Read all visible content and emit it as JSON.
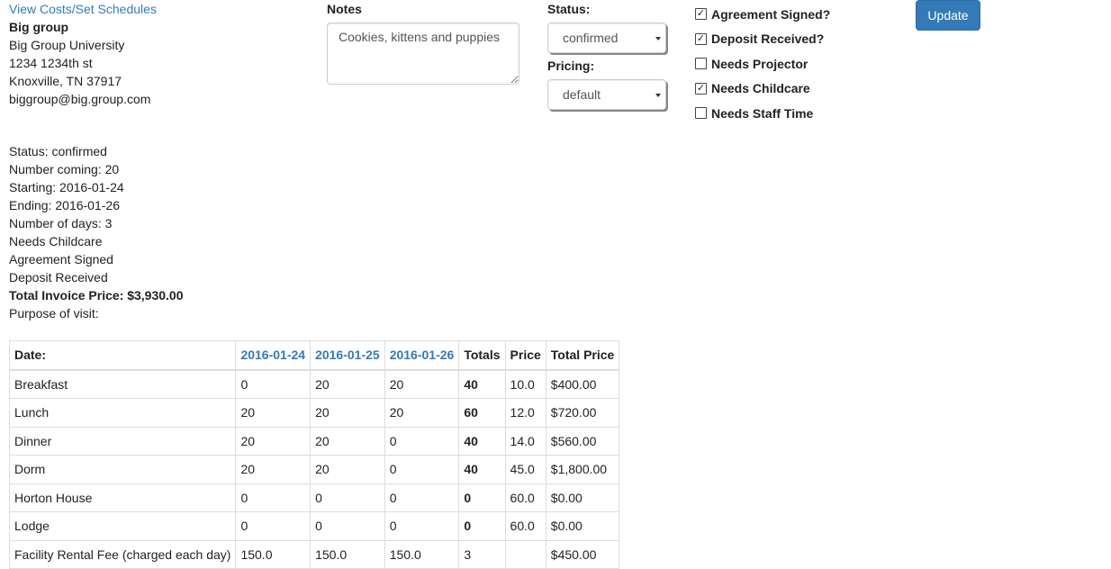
{
  "group": {
    "link_label": "View Costs/Set Schedules",
    "name": "Big group",
    "organization": "Big Group University",
    "address1": "1234 1234th st",
    "city_line": "Knoxville, TN 37917",
    "email": "biggroup@big.group.com"
  },
  "notes": {
    "label": "Notes",
    "value": "Cookies, kittens and puppies"
  },
  "status": {
    "label": "Status:",
    "selected": "confirmed"
  },
  "pricing": {
    "label": "Pricing:",
    "selected": "default"
  },
  "checkboxes": [
    {
      "label": "Agreement Signed?",
      "checked": true
    },
    {
      "label": "Deposit Received?",
      "checked": true
    },
    {
      "label": "Needs Projector",
      "checked": false
    },
    {
      "label": "Needs Childcare",
      "checked": true
    },
    {
      "label": "Needs Staff Time",
      "checked": false
    }
  ],
  "update_label": "Update",
  "summary": {
    "status": "Status: confirmed",
    "number_coming": "Number coming: 20",
    "starting": "Starting: 2016-01-24",
    "ending": "Ending: 2016-01-26",
    "number_of_days": "Number of days: 3",
    "needs_childcare": "Needs Childcare",
    "agreement_signed": "Agreement Signed",
    "deposit_received": "Deposit Received",
    "total_invoice": "Total Invoice Price: $3,930.00",
    "purpose": "Purpose of visit:"
  },
  "table": {
    "headers": {
      "date": "Date:",
      "day1": "2016-01-24",
      "day2": "2016-01-25",
      "day3": "2016-01-26",
      "totals": "Totals",
      "price": "Price",
      "total_price": "Total Price"
    },
    "rows": [
      {
        "name": "Breakfast",
        "d1": "0",
        "d2": "20",
        "d3": "20",
        "totals": "40",
        "price": "10.0",
        "total_price": "$400.00"
      },
      {
        "name": "Lunch",
        "d1": "20",
        "d2": "20",
        "d3": "20",
        "totals": "60",
        "price": "12.0",
        "total_price": "$720.00"
      },
      {
        "name": "Dinner",
        "d1": "20",
        "d2": "20",
        "d3": "0",
        "totals": "40",
        "price": "14.0",
        "total_price": "$560.00"
      },
      {
        "name": "Dorm",
        "d1": "20",
        "d2": "20",
        "d3": "0",
        "totals": "40",
        "price": "45.0",
        "total_price": "$1,800.00"
      },
      {
        "name": "Horton House",
        "d1": "0",
        "d2": "0",
        "d3": "0",
        "totals": "0",
        "price": "60.0",
        "total_price": "$0.00"
      },
      {
        "name": "Lodge",
        "d1": "0",
        "d2": "0",
        "d3": "0",
        "totals": "0",
        "price": "60.0",
        "total_price": "$0.00"
      },
      {
        "name": "Facility Rental Fee (charged each day)",
        "d1": "150.0",
        "d2": "150.0",
        "d3": "150.0",
        "totals": "3",
        "price": "",
        "total_price": "$450.00"
      }
    ]
  }
}
